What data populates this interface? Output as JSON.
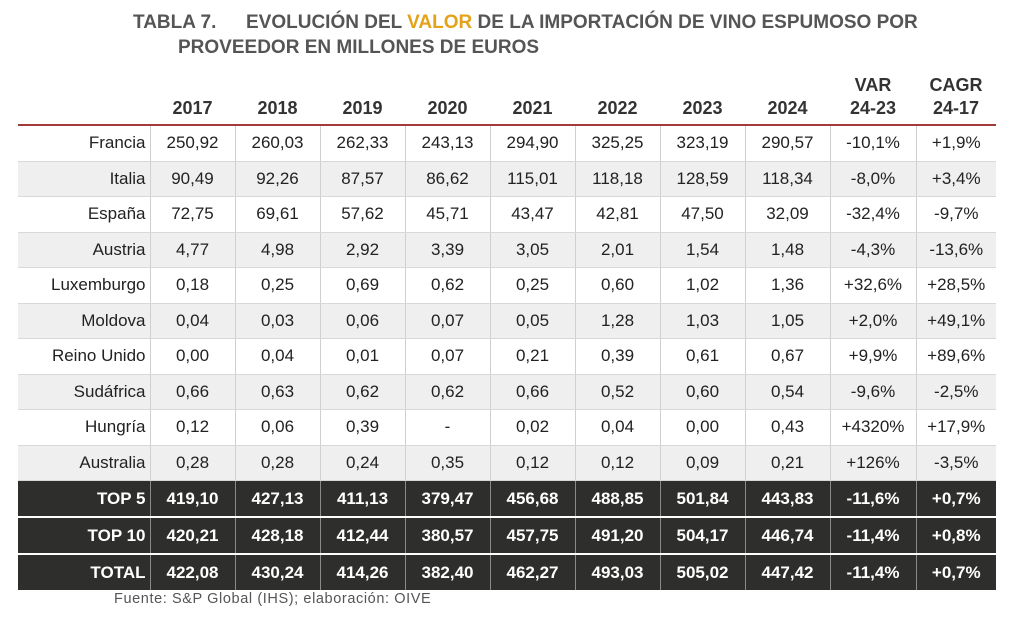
{
  "title": {
    "number": "TABLA 7.",
    "line1_prefix": "EVOLUCIÓN DEL ",
    "line1_highlight": "VALOR",
    "line1_suffix": " DE LA IMPORTACIÓN DE VINO ESPUMOSO POR",
    "line2": "PROVEEDOR EN MILLONES DE EUROS",
    "highlight_color": "#e3a21a"
  },
  "table": {
    "headers": [
      "",
      "2017",
      "2018",
      "2019",
      "2020",
      "2021",
      "2022",
      "2023",
      "2024",
      "VAR",
      "CAGR"
    ],
    "headers_sub": [
      "",
      "",
      "",
      "",
      "",
      "",
      "",
      "",
      "",
      "24-23",
      "24-17"
    ],
    "rows": [
      [
        "Francia",
        "250,92",
        "260,03",
        "262,33",
        "243,13",
        "294,90",
        "325,25",
        "323,19",
        "290,57",
        "-10,1%",
        "+1,9%"
      ],
      [
        "Italia",
        "90,49",
        "92,26",
        "87,57",
        "86,62",
        "115,01",
        "118,18",
        "128,59",
        "118,34",
        "-8,0%",
        "+3,4%"
      ],
      [
        "España",
        "72,75",
        "69,61",
        "57,62",
        "45,71",
        "43,47",
        "42,81",
        "47,50",
        "32,09",
        "-32,4%",
        "-9,7%"
      ],
      [
        "Austria",
        "4,77",
        "4,98",
        "2,92",
        "3,39",
        "3,05",
        "2,01",
        "1,54",
        "1,48",
        "-4,3%",
        "-13,6%"
      ],
      [
        "Luxemburgo",
        "0,18",
        "0,25",
        "0,69",
        "0,62",
        "0,25",
        "0,60",
        "1,02",
        "1,36",
        "+32,6%",
        "+28,5%"
      ],
      [
        "Moldova",
        "0,04",
        "0,03",
        "0,06",
        "0,07",
        "0,05",
        "1,28",
        "1,03",
        "1,05",
        "+2,0%",
        "+49,1%"
      ],
      [
        "Reino Unido",
        "0,00",
        "0,04",
        "0,01",
        "0,07",
        "0,21",
        "0,39",
        "0,61",
        "0,67",
        "+9,9%",
        "+89,6%"
      ],
      [
        "Sudáfrica",
        "0,66",
        "0,63",
        "0,62",
        "0,62",
        "0,66",
        "0,52",
        "0,60",
        "0,54",
        "-9,6%",
        "-2,5%"
      ],
      [
        "Hungría",
        "0,12",
        "0,06",
        "0,39",
        "-",
        "0,02",
        "0,04",
        "0,00",
        "0,43",
        "+4320%",
        "+17,9%"
      ],
      [
        "Australia",
        "0,28",
        "0,28",
        "0,24",
        "0,35",
        "0,12",
        "0,12",
        "0,09",
        "0,21",
        "+126%",
        "-3,5%"
      ]
    ],
    "totals": [
      [
        "TOP 5",
        "419,10",
        "427,13",
        "411,13",
        "379,47",
        "456,68",
        "488,85",
        "501,84",
        "443,83",
        "-11,6%",
        "+0,7%"
      ],
      [
        "TOP 10",
        "420,21",
        "428,18",
        "412,44",
        "380,57",
        "457,75",
        "491,20",
        "504,17",
        "446,74",
        "-11,4%",
        "+0,8%"
      ],
      [
        "TOTAL",
        "422,08",
        "430,24",
        "414,26",
        "382,40",
        "462,27",
        "493,03",
        "505,02",
        "447,42",
        "-11,4%",
        "+0,7%"
      ]
    ]
  },
  "source": "Fuente: S&P Global (IHS); elaboración: OIVE",
  "colors": {
    "header_rule": "#a23a3a",
    "total_rows_bg": "#2e2e2c",
    "alt_row_bg": "#efefef"
  }
}
